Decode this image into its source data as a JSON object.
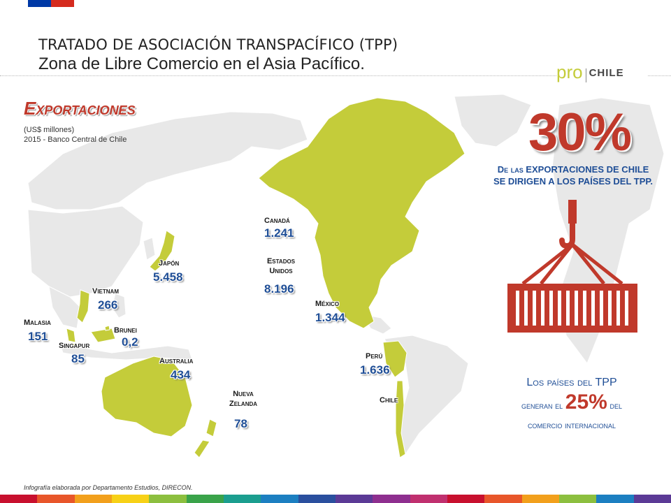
{
  "header": {
    "title_line1": "TRATADO DE ASOCIACIÓN TRANSPACÍFICO (TPP)",
    "title_line2": "Zona de Libre Comercio en el Asia Pacífico.",
    "logo_pro": "pro",
    "logo_chile": "CHILE"
  },
  "exports": {
    "title": "Exportaciones",
    "unit": "(US$ millones)",
    "source": "2015 - Banco Central de Chile"
  },
  "countries": [
    {
      "name": "Canadá",
      "value": "1.241"
    },
    {
      "name": "Estados Unidos",
      "value": "8.196"
    },
    {
      "name": "México",
      "value": "1.344"
    },
    {
      "name": "Japón",
      "value": "5.458"
    },
    {
      "name": "Vietnam",
      "value": "266"
    },
    {
      "name": "Malasia",
      "value": "151"
    },
    {
      "name": "Brunei",
      "value": "0,2"
    },
    {
      "name": "Singapur",
      "value": "85"
    },
    {
      "name": "Australia",
      "value": "434"
    },
    {
      "name": "Nueva Zelanda",
      "value": "78"
    },
    {
      "name": "Perú",
      "value": "1.636"
    },
    {
      "name": "Chile",
      "value": ""
    }
  ],
  "highlight": {
    "percent": "30%",
    "line1": "De las EXPORTACIONES DE CHILE",
    "line2": "SE DIRIGEN A LOS PAÍSES DEL TPP."
  },
  "tpp_note": {
    "part1": "Los países del TPP",
    "part2": "generan el",
    "percent": "25%",
    "part3": "del",
    "part4": "comercio internacional"
  },
  "footer": "Infografía elaborada por Departamento Estudios, DIRECON.",
  "colors": {
    "land_tpp": "#c4cc3a",
    "land_other": "#e8e8e8",
    "accent_red": "#c0392b",
    "value_blue": "#1f4e96"
  }
}
